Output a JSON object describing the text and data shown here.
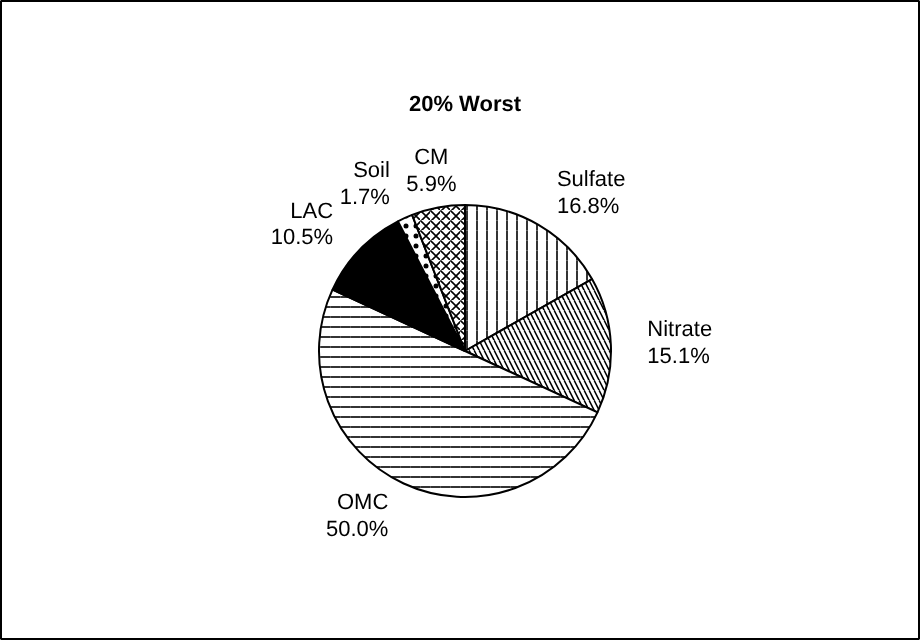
{
  "chart_data": {
    "type": "pie",
    "title": "20% Worst",
    "categories": [
      "Sulfate",
      "Nitrate",
      "OMC",
      "LAC",
      "Soil",
      "CM"
    ],
    "values": [
      16.8,
      15.1,
      50.0,
      10.5,
      1.7,
      5.9
    ],
    "colors": [
      "#ffffff",
      "#ffffff",
      "#ffffff",
      "#000000",
      "#ffffff",
      "#ffffff"
    ],
    "value_labels": [
      "16.8%",
      "15.1%",
      "50.0%",
      "10.5%",
      "1.7%",
      "5.9%"
    ]
  }
}
